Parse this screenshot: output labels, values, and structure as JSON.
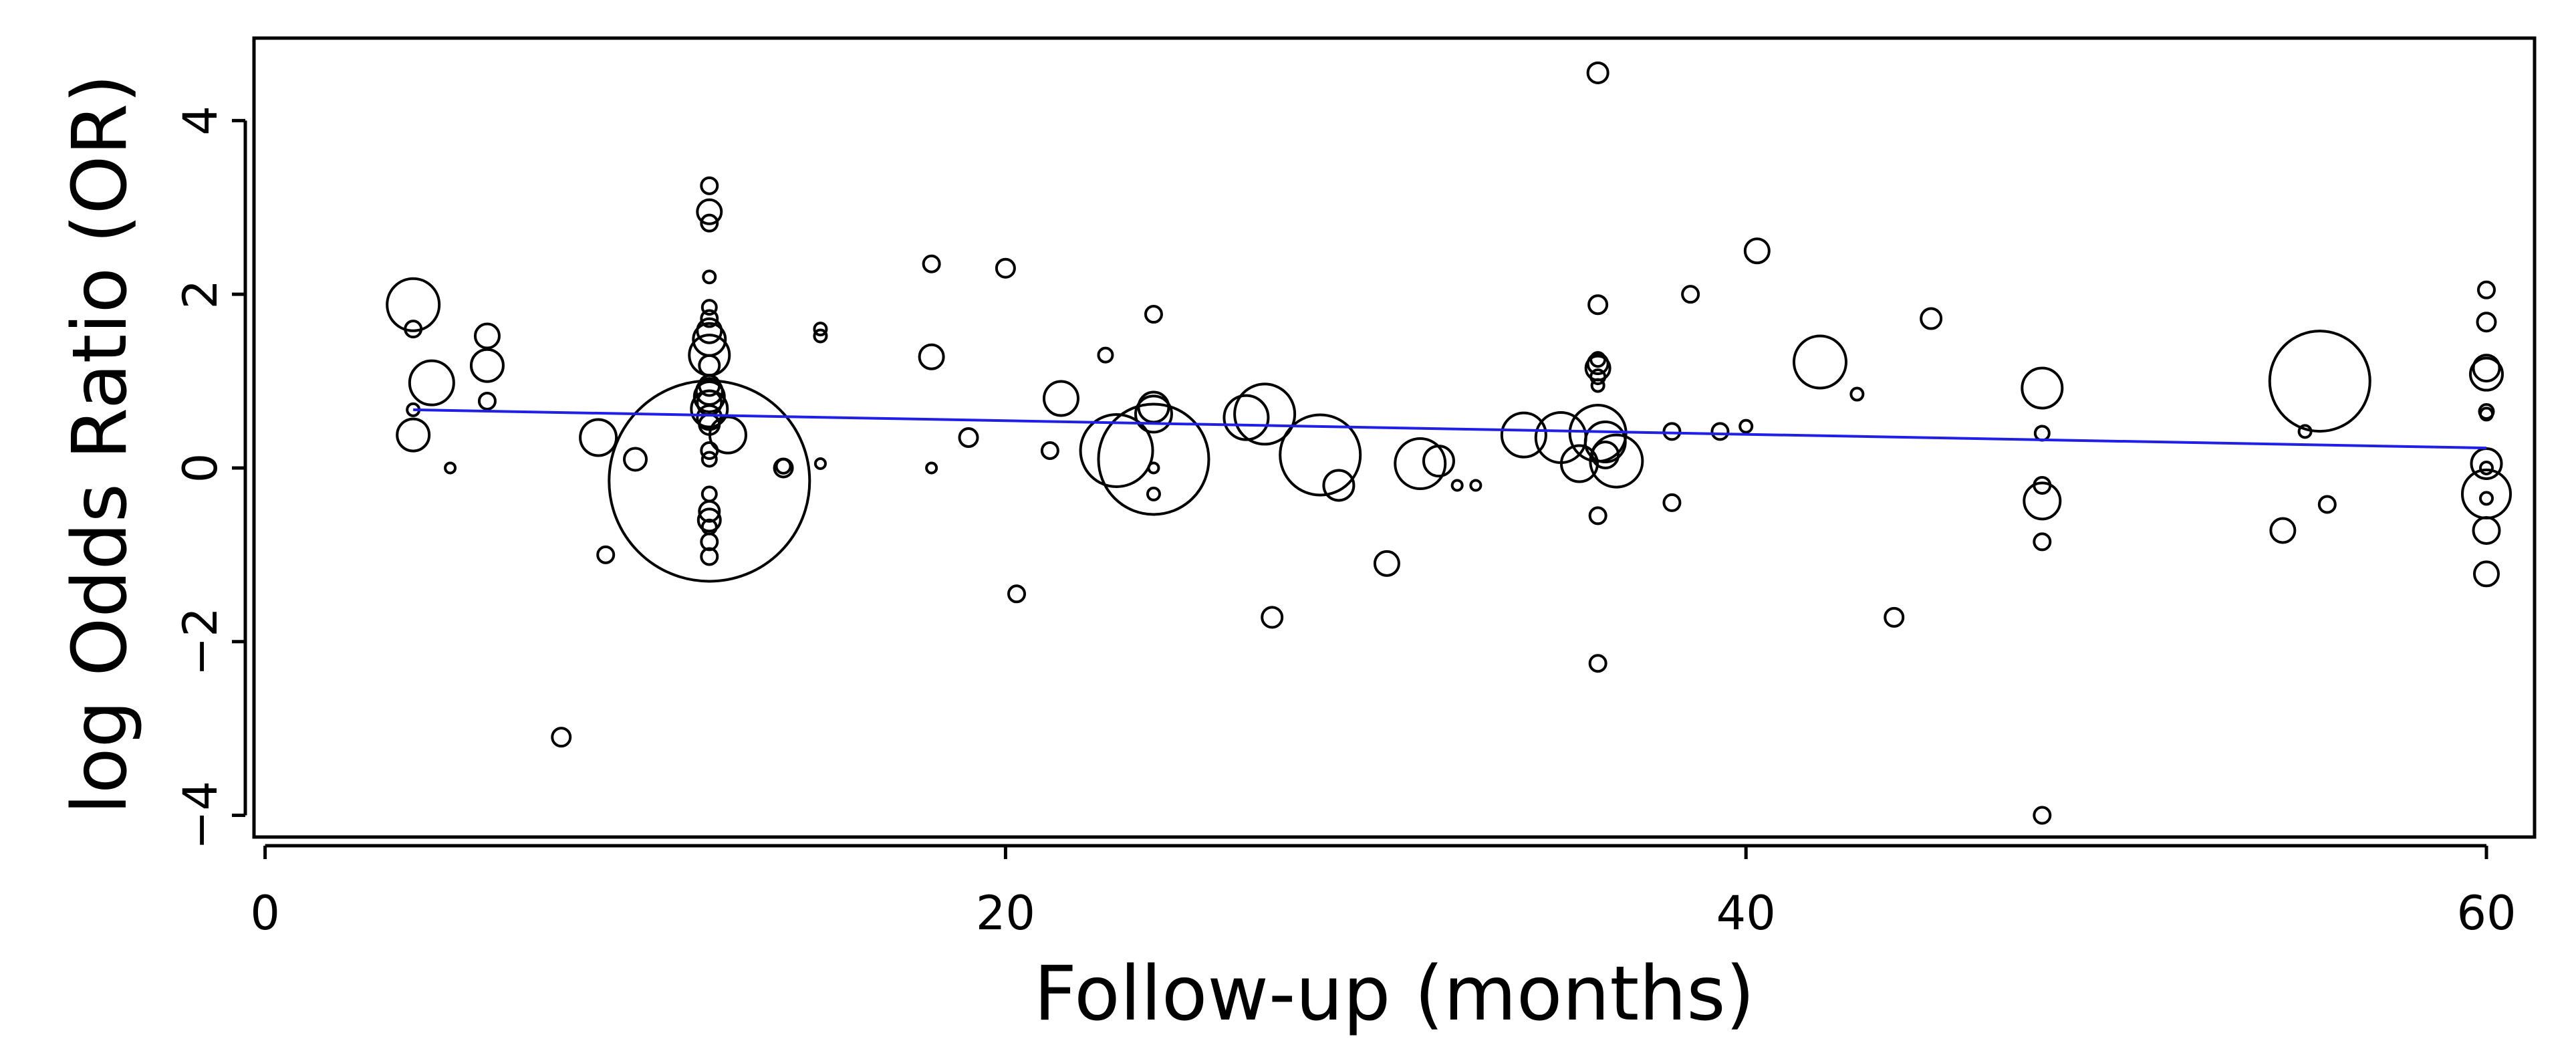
{
  "chart_data": {
    "type": "scatter",
    "title": "",
    "xlabel": "Follow-up (months)",
    "ylabel": "log Odds Ratio (OR)",
    "xlim": [
      -0.3,
      61.3
    ],
    "ylim": [
      -4.25,
      4.95
    ],
    "xticks": [
      0,
      20,
      40,
      60
    ],
    "yticks": [
      -4,
      -2,
      0,
      2,
      4
    ],
    "grid": false,
    "legend": "none",
    "colors": {
      "points": "#000000",
      "regression_line": "#1f1fe6"
    },
    "regression_line": {
      "x": [
        4,
        60
      ],
      "y": [
        0.67,
        0.23
      ]
    },
    "points": [
      {
        "x": 4,
        "y": 1.88,
        "weight": 2.6
      },
      {
        "x": 4,
        "y": 1.6,
        "weight": 0.8
      },
      {
        "x": 4,
        "y": 0.67,
        "weight": 0.6
      },
      {
        "x": 4,
        "y": 0.38,
        "weight": 1.6
      },
      {
        "x": 4.5,
        "y": 0.98,
        "weight": 2.2
      },
      {
        "x": 5,
        "y": 0.0,
        "weight": 0.5
      },
      {
        "x": 6,
        "y": 1.52,
        "weight": 1.2
      },
      {
        "x": 6,
        "y": 1.18,
        "weight": 1.6
      },
      {
        "x": 6,
        "y": 0.77,
        "weight": 0.8
      },
      {
        "x": 8,
        "y": -3.1,
        "weight": 0.9
      },
      {
        "x": 9,
        "y": 0.35,
        "weight": 1.8
      },
      {
        "x": 9.2,
        "y": -1.0,
        "weight": 0.8
      },
      {
        "x": 10,
        "y": 0.1,
        "weight": 1.1
      },
      {
        "x": 12,
        "y": 3.25,
        "weight": 0.8
      },
      {
        "x": 12,
        "y": 2.95,
        "weight": 1.2
      },
      {
        "x": 12,
        "y": 2.82,
        "weight": 0.8
      },
      {
        "x": 12,
        "y": 2.2,
        "weight": 0.6
      },
      {
        "x": 12,
        "y": 1.85,
        "weight": 0.7
      },
      {
        "x": 12,
        "y": 1.72,
        "weight": 0.8
      },
      {
        "x": 12,
        "y": 1.58,
        "weight": 1.2
      },
      {
        "x": 12,
        "y": 1.48,
        "weight": 1.6
      },
      {
        "x": 12,
        "y": 1.3,
        "weight": 2.0
      },
      {
        "x": 12,
        "y": 1.18,
        "weight": 1.0
      },
      {
        "x": 12,
        "y": 0.95,
        "weight": 1.0
      },
      {
        "x": 12,
        "y": 0.88,
        "weight": 1.3
      },
      {
        "x": 12,
        "y": 0.82,
        "weight": 1.5
      },
      {
        "x": 12,
        "y": 0.75,
        "weight": 1.2
      },
      {
        "x": 12,
        "y": 0.68,
        "weight": 1.8
      },
      {
        "x": 12,
        "y": 0.58,
        "weight": 1.2
      },
      {
        "x": 12,
        "y": 0.5,
        "weight": 1.0
      },
      {
        "x": 12.5,
        "y": 0.38,
        "weight": 1.8
      },
      {
        "x": 12,
        "y": 0.2,
        "weight": 0.8
      },
      {
        "x": 12,
        "y": 0.1,
        "weight": 0.7
      },
      {
        "x": 12,
        "y": -0.15,
        "weight": 10.0
      },
      {
        "x": 12,
        "y": -0.3,
        "weight": 0.7
      },
      {
        "x": 12,
        "y": -0.5,
        "weight": 1.0
      },
      {
        "x": 12,
        "y": -0.6,
        "weight": 1.1
      },
      {
        "x": 12,
        "y": -0.68,
        "weight": 0.7
      },
      {
        "x": 12,
        "y": -0.85,
        "weight": 0.8
      },
      {
        "x": 12,
        "y": -1.02,
        "weight": 0.8
      },
      {
        "x": 14,
        "y": 0.0,
        "weight": 0.9
      },
      {
        "x": 14,
        "y": 0.02,
        "weight": 0.7
      },
      {
        "x": 15,
        "y": 1.6,
        "weight": 0.6
      },
      {
        "x": 15,
        "y": 1.52,
        "weight": 0.6
      },
      {
        "x": 15,
        "y": 0.05,
        "weight": 0.5
      },
      {
        "x": 18,
        "y": 2.35,
        "weight": 0.8
      },
      {
        "x": 18,
        "y": 1.28,
        "weight": 1.2
      },
      {
        "x": 18,
        "y": 0.0,
        "weight": 0.5
      },
      {
        "x": 19,
        "y": 0.35,
        "weight": 0.9
      },
      {
        "x": 20,
        "y": 2.3,
        "weight": 0.9
      },
      {
        "x": 20.3,
        "y": -1.45,
        "weight": 0.8
      },
      {
        "x": 21.2,
        "y": 0.2,
        "weight": 0.8
      },
      {
        "x": 21.5,
        "y": 0.8,
        "weight": 1.7
      },
      {
        "x": 22.7,
        "y": 1.3,
        "weight": 0.7
      },
      {
        "x": 23,
        "y": 0.2,
        "weight": 3.6
      },
      {
        "x": 24,
        "y": 1.77,
        "weight": 0.8
      },
      {
        "x": 24,
        "y": 0.7,
        "weight": 1.5
      },
      {
        "x": 24,
        "y": 0.62,
        "weight": 1.8
      },
      {
        "x": 24,
        "y": 0.0,
        "weight": 0.5
      },
      {
        "x": 24,
        "y": -0.3,
        "weight": 0.6
      },
      {
        "x": 24,
        "y": 0.1,
        "weight": 5.5
      },
      {
        "x": 26.5,
        "y": 0.58,
        "weight": 2.2
      },
      {
        "x": 27,
        "y": 0.62,
        "weight": 3.0
      },
      {
        "x": 27.2,
        "y": -1.72,
        "weight": 1.0
      },
      {
        "x": 28.5,
        "y": 0.15,
        "weight": 4.0
      },
      {
        "x": 29,
        "y": -0.2,
        "weight": 1.5
      },
      {
        "x": 30.3,
        "y": -1.1,
        "weight": 1.2
      },
      {
        "x": 31.2,
        "y": 0.05,
        "weight": 2.5
      },
      {
        "x": 31.7,
        "y": 0.08,
        "weight": 1.5
      },
      {
        "x": 32.2,
        "y": -0.2,
        "weight": 0.5
      },
      {
        "x": 32.7,
        "y": -0.2,
        "weight": 0.5
      },
      {
        "x": 34,
        "y": 0.38,
        "weight": 2.2
      },
      {
        "x": 35,
        "y": 0.35,
        "weight": 2.5
      },
      {
        "x": 35.5,
        "y": 0.05,
        "weight": 1.8
      },
      {
        "x": 36,
        "y": 4.55,
        "weight": 1.0
      },
      {
        "x": 36,
        "y": 1.88,
        "weight": 0.9
      },
      {
        "x": 36,
        "y": 1.25,
        "weight": 0.7
      },
      {
        "x": 36,
        "y": 1.2,
        "weight": 1.0
      },
      {
        "x": 36,
        "y": 1.15,
        "weight": 1.2
      },
      {
        "x": 36,
        "y": 1.05,
        "weight": 0.7
      },
      {
        "x": 36,
        "y": 0.95,
        "weight": 0.6
      },
      {
        "x": 36,
        "y": 0.4,
        "weight": 2.8
      },
      {
        "x": 36.2,
        "y": 0.3,
        "weight": 2.0
      },
      {
        "x": 36.2,
        "y": 0.15,
        "weight": 1.3
      },
      {
        "x": 36.5,
        "y": 0.08,
        "weight": 2.6
      },
      {
        "x": 36,
        "y": -0.55,
        "weight": 0.8
      },
      {
        "x": 36,
        "y": -2.25,
        "weight": 0.8
      },
      {
        "x": 38,
        "y": 0.42,
        "weight": 0.8
      },
      {
        "x": 38,
        "y": -0.4,
        "weight": 0.8
      },
      {
        "x": 38.5,
        "y": 2.0,
        "weight": 0.8
      },
      {
        "x": 39.3,
        "y": 0.42,
        "weight": 0.8
      },
      {
        "x": 40,
        "y": 0.48,
        "weight": 0.6
      },
      {
        "x": 40.3,
        "y": 2.5,
        "weight": 1.2
      },
      {
        "x": 42,
        "y": 1.22,
        "weight": 2.6
      },
      {
        "x": 43,
        "y": 0.85,
        "weight": 0.6
      },
      {
        "x": 44,
        "y": -1.72,
        "weight": 0.9
      },
      {
        "x": 45,
        "y": 1.72,
        "weight": 1.0
      },
      {
        "x": 48,
        "y": 0.92,
        "weight": 2.0
      },
      {
        "x": 48,
        "y": 0.4,
        "weight": 0.7
      },
      {
        "x": 48,
        "y": -0.2,
        "weight": 0.8
      },
      {
        "x": 48,
        "y": -0.38,
        "weight": 1.8
      },
      {
        "x": 48,
        "y": -0.85,
        "weight": 0.8
      },
      {
        "x": 48,
        "y": -4.0,
        "weight": 0.8
      },
      {
        "x": 54.5,
        "y": -0.72,
        "weight": 1.2
      },
      {
        "x": 55.1,
        "y": 0.42,
        "weight": 0.6
      },
      {
        "x": 55.5,
        "y": 1.0,
        "weight": 5.0
      },
      {
        "x": 55.7,
        "y": -0.42,
        "weight": 0.8
      },
      {
        "x": 60,
        "y": 2.05,
        "weight": 0.8
      },
      {
        "x": 60,
        "y": 1.68,
        "weight": 0.9
      },
      {
        "x": 60,
        "y": 1.15,
        "weight": 1.3
      },
      {
        "x": 60,
        "y": 1.08,
        "weight": 1.6
      },
      {
        "x": 60,
        "y": 0.65,
        "weight": 0.7
      },
      {
        "x": 60,
        "y": 0.62,
        "weight": 0.6
      },
      {
        "x": 60,
        "y": 0.05,
        "weight": 1.5
      },
      {
        "x": 60,
        "y": 0.0,
        "weight": 0.6
      },
      {
        "x": 60,
        "y": -0.3,
        "weight": 2.4
      },
      {
        "x": 60,
        "y": -0.35,
        "weight": 0.6
      },
      {
        "x": 60,
        "y": -0.72,
        "weight": 1.3
      },
      {
        "x": 60,
        "y": -1.22,
        "weight": 1.2
      }
    ]
  }
}
